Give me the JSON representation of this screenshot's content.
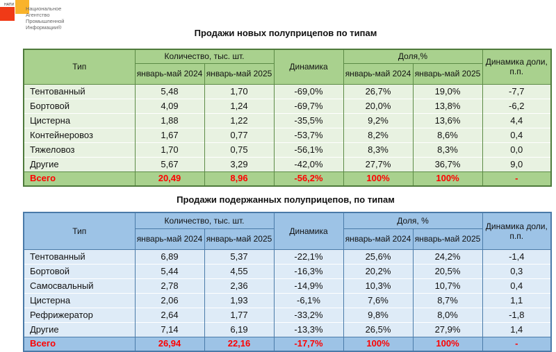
{
  "logo": {
    "abbr": "НАПИ",
    "name": "Национальное Агентство Промышленной Информации®"
  },
  "colors": {
    "green_header": "#a9d18e",
    "green_body": "#e8f2e1",
    "blue_header": "#9dc3e6",
    "blue_body": "#deebf7",
    "total_text": "#ff0000"
  },
  "tables": [
    {
      "title": "Продажи новых полуприцепов по типам",
      "headers": {
        "type": "Тип",
        "qty": "Количество, тыс. шт.",
        "p1": "январь-май 2024",
        "p2": "январь-май 2025",
        "dyn": "Динамика",
        "share": "Доля,%",
        "share_dyn": "Динамика доли, п.п."
      },
      "rows": [
        [
          "Тентованный",
          "5,48",
          "1,70",
          "-69,0%",
          "26,7%",
          "19,0%",
          "-7,7"
        ],
        [
          "Бортовой",
          "4,09",
          "1,24",
          "-69,7%",
          "20,0%",
          "13,8%",
          "-6,2"
        ],
        [
          "Цистерна",
          "1,88",
          "1,22",
          "-35,5%",
          "9,2%",
          "13,6%",
          "4,4"
        ],
        [
          "Контейнеровоз",
          "1,67",
          "0,77",
          "-53,7%",
          "8,2%",
          "8,6%",
          "0,4"
        ],
        [
          "Тяжеловоз",
          "1,70",
          "0,75",
          "-56,1%",
          "8,3%",
          "8,3%",
          "0,0"
        ],
        [
          "Другие",
          "5,67",
          "3,29",
          "-42,0%",
          "27,7%",
          "36,7%",
          "9,0"
        ]
      ],
      "total": [
        "Всего",
        "20,49",
        "8,96",
        "-56,2%",
        "100%",
        "100%",
        "-"
      ]
    },
    {
      "title": "Продажи подержанных полуприцепов, по типам",
      "headers": {
        "type": "Тип",
        "qty": "Количество, тыс. шт.",
        "p1": "январь-май 2024",
        "p2": "январь-май 2025",
        "dyn": "Динамика",
        "share": "Доля, %",
        "share_dyn": "Динамика доли, п.п."
      },
      "rows": [
        [
          "Тентованный",
          "6,89",
          "5,37",
          "-22,1%",
          "25,6%",
          "24,2%",
          "-1,4"
        ],
        [
          "Бортовой",
          "5,44",
          "4,55",
          "-16,3%",
          "20,2%",
          "20,5%",
          "0,3"
        ],
        [
          "Самосвальный",
          "2,78",
          "2,36",
          "-14,9%",
          "10,3%",
          "10,7%",
          "0,4"
        ],
        [
          "Цистерна",
          "2,06",
          "1,93",
          "-6,1%",
          "7,6%",
          "8,7%",
          "1,1"
        ],
        [
          "Рефрижератор",
          "2,64",
          "1,77",
          "-33,2%",
          "9,8%",
          "8,0%",
          "-1,8"
        ],
        [
          "Другие",
          "7,14",
          "6,19",
          "-13,3%",
          "26,5%",
          "27,9%",
          "1,4"
        ]
      ],
      "total": [
        "Всего",
        "26,94",
        "22,16",
        "-17,7%",
        "100%",
        "100%",
        "-"
      ]
    }
  ]
}
